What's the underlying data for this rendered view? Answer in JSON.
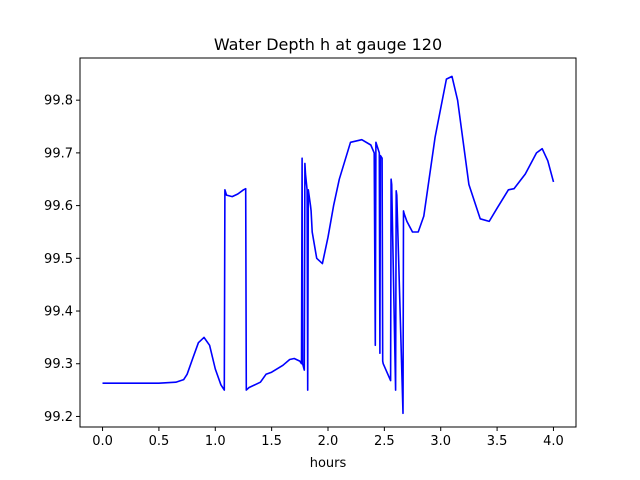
{
  "chart_data": {
    "type": "line",
    "title": "Water Depth h at gauge 120",
    "xlabel": "hours",
    "ylabel": "",
    "xlim": [
      -0.2,
      4.2
    ],
    "ylim": [
      99.18,
      99.88
    ],
    "xticks": [
      0.0,
      0.5,
      1.0,
      1.5,
      2.0,
      2.5,
      3.0,
      3.5,
      4.0
    ],
    "xtick_labels": [
      "0.0",
      "0.5",
      "1.0",
      "1.5",
      "2.0",
      "2.5",
      "3.0",
      "3.5",
      "4.0"
    ],
    "yticks": [
      99.2,
      99.3,
      99.4,
      99.5,
      99.6,
      99.7,
      99.8
    ],
    "ytick_labels": [
      "99.2",
      "99.3",
      "99.4",
      "99.5",
      "99.6",
      "99.7",
      "99.8"
    ],
    "grid": false,
    "series": [
      {
        "color": "#0000ff",
        "x": [
          0.0,
          0.5,
          0.65,
          0.72,
          0.75,
          0.8,
          0.85,
          0.9,
          0.95,
          1.0,
          1.05,
          1.08,
          1.085,
          1.1,
          1.15,
          1.2,
          1.25,
          1.27,
          1.275,
          1.3,
          1.4,
          1.45,
          1.5,
          1.6,
          1.66,
          1.7,
          1.75,
          1.765,
          1.77,
          1.775,
          1.79,
          1.795,
          1.8,
          1.815,
          1.82,
          1.825,
          1.845,
          1.85,
          1.86,
          1.9,
          1.95,
          2.0,
          2.05,
          2.1,
          2.2,
          2.3,
          2.38,
          2.41,
          2.42,
          2.425,
          2.455,
          2.46,
          2.465,
          2.48,
          2.485,
          2.49,
          2.555,
          2.56,
          2.565,
          2.6,
          2.605,
          2.61,
          2.665,
          2.67,
          2.675,
          2.7,
          2.75,
          2.8,
          2.85,
          2.95,
          3.05,
          3.1,
          3.15,
          3.25,
          3.35,
          3.43,
          3.5,
          3.6,
          3.65,
          3.75,
          3.85,
          3.9,
          3.95,
          4.0
        ],
        "y": [
          99.263,
          99.263,
          99.265,
          99.27,
          99.28,
          99.31,
          99.34,
          99.35,
          99.335,
          99.29,
          99.26,
          99.25,
          99.63,
          99.62,
          99.617,
          99.622,
          99.63,
          99.632,
          99.25,
          99.255,
          99.265,
          99.28,
          99.284,
          99.297,
          99.308,
          99.31,
          99.305,
          99.3,
          99.69,
          99.3,
          99.288,
          99.68,
          99.66,
          99.63,
          99.25,
          99.63,
          99.6,
          99.59,
          99.55,
          99.5,
          99.49,
          99.54,
          99.6,
          99.65,
          99.72,
          99.725,
          99.715,
          99.7,
          99.335,
          99.72,
          99.7,
          99.32,
          99.695,
          99.69,
          99.305,
          99.3,
          99.268,
          99.65,
          99.64,
          99.25,
          99.628,
          99.62,
          99.206,
          99.59,
          99.585,
          99.57,
          99.55,
          99.55,
          99.58,
          99.73,
          99.84,
          99.845,
          99.8,
          99.64,
          99.575,
          99.57,
          99.595,
          99.63,
          99.632,
          99.66,
          99.7,
          99.708,
          99.685,
          99.645
        ]
      }
    ]
  }
}
